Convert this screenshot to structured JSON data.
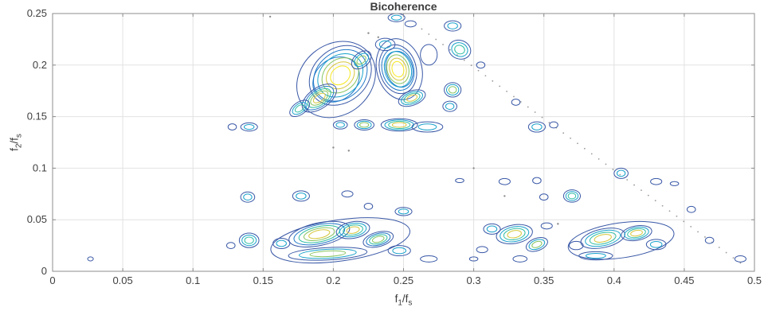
{
  "chart_data": {
    "type": "contour",
    "title": "Bicoherence",
    "xlabel_parts": [
      "f",
      "1",
      "/f",
      "s"
    ],
    "ylabel_parts": [
      "f",
      "2",
      "/f",
      "s"
    ],
    "xlim": [
      0,
      0.5
    ],
    "ylim": [
      0,
      0.25
    ],
    "xticks": [
      0,
      0.05,
      0.1,
      0.15,
      0.2,
      0.25,
      0.3,
      0.35,
      0.4,
      0.45,
      0.5
    ],
    "xtick_labels": [
      "0",
      "0.05",
      "0.1",
      "0.15",
      "0.2",
      "0.25",
      "0.3",
      "0.35",
      "0.4",
      "0.45",
      "0.5"
    ],
    "yticks": [
      0,
      0.05,
      0.1,
      0.15,
      0.2,
      0.25
    ],
    "ytick_labels": [
      "0",
      "0.05",
      "0.1",
      "0.15",
      "0.2",
      "0.25"
    ],
    "grid": true,
    "legend": "none",
    "grid_color": "#e2e2e2",
    "axis_color": "#8c8c8c",
    "text_color": "#404040",
    "dot_color": "#8c8c8c",
    "palette": [
      "#3857a6",
      "#1f77c8",
      "#18a2cc",
      "#2fbda2",
      "#86c45f",
      "#d6c63b",
      "#f6e821"
    ],
    "blob_format": "x, y, rx, ry, rotation_deg, rings, peak_level_0to1",
    "blobs": [
      [
        0.202,
        0.186,
        0.03,
        0.034,
        -40,
        2,
        0.15
      ],
      [
        0.205,
        0.19,
        0.024,
        0.026,
        -40,
        6,
        1.0
      ],
      [
        0.19,
        0.168,
        0.014,
        0.01,
        -35,
        5,
        0.85
      ],
      [
        0.176,
        0.158,
        0.008,
        0.006,
        -35,
        3,
        0.5
      ],
      [
        0.22,
        0.205,
        0.008,
        0.007,
        -40,
        3,
        0.6
      ],
      [
        0.247,
        0.196,
        0.016,
        0.03,
        -15,
        2,
        0.15
      ],
      [
        0.246,
        0.196,
        0.013,
        0.024,
        -15,
        6,
        1.0
      ],
      [
        0.256,
        0.168,
        0.01,
        0.007,
        -20,
        4,
        0.8
      ],
      [
        0.237,
        0.22,
        0.007,
        0.006,
        0,
        2,
        0.3
      ],
      [
        0.268,
        0.21,
        0.006,
        0.01,
        0,
        1,
        0
      ],
      [
        0.205,
        0.142,
        0.005,
        0.004,
        0,
        2,
        0.4
      ],
      [
        0.222,
        0.142,
        0.007,
        0.005,
        0,
        3,
        0.6
      ],
      [
        0.247,
        0.142,
        0.013,
        0.006,
        0,
        4,
        0.75
      ],
      [
        0.267,
        0.14,
        0.011,
        0.005,
        0,
        2,
        0.3
      ],
      [
        0.283,
        0.16,
        0.005,
        0.005,
        0,
        2,
        0.4
      ],
      [
        0.285,
        0.176,
        0.006,
        0.007,
        0,
        3,
        0.6
      ],
      [
        0.29,
        0.215,
        0.008,
        0.009,
        20,
        3,
        0.55
      ],
      [
        0.285,
        0.238,
        0.006,
        0.005,
        0,
        2,
        0.3
      ],
      [
        0.245,
        0.246,
        0.006,
        0.004,
        0,
        2,
        0.4
      ],
      [
        0.255,
        0.24,
        0.004,
        0.003,
        0,
        1,
        0
      ],
      [
        0.14,
        0.14,
        0.006,
        0.004,
        0,
        2,
        0.35
      ],
      [
        0.128,
        0.14,
        0.003,
        0.003,
        0,
        1,
        0
      ],
      [
        0.139,
        0.072,
        0.005,
        0.005,
        0,
        2,
        0.35
      ],
      [
        0.14,
        0.03,
        0.007,
        0.007,
        0,
        3,
        0.55
      ],
      [
        0.127,
        0.025,
        0.003,
        0.003,
        0,
        1,
        0
      ],
      [
        0.177,
        0.073,
        0.006,
        0.005,
        0,
        2,
        0.4
      ],
      [
        0.21,
        0.075,
        0.004,
        0.003,
        0,
        1,
        0
      ],
      [
        0.25,
        0.058,
        0.006,
        0.004,
        0,
        2,
        0.3
      ],
      [
        0.225,
        0.063,
        0.003,
        0.003,
        0,
        1,
        0
      ],
      [
        0.205,
        0.03,
        0.05,
        0.02,
        -8,
        1,
        0
      ],
      [
        0.19,
        0.036,
        0.022,
        0.011,
        -12,
        5,
        0.9
      ],
      [
        0.214,
        0.04,
        0.012,
        0.008,
        -10,
        4,
        0.8
      ],
      [
        0.232,
        0.031,
        0.011,
        0.007,
        -15,
        4,
        0.7
      ],
      [
        0.196,
        0.017,
        0.028,
        0.006,
        -3,
        3,
        0.6
      ],
      [
        0.247,
        0.02,
        0.008,
        0.005,
        0,
        2,
        0.3
      ],
      [
        0.163,
        0.027,
        0.006,
        0.005,
        0,
        2,
        0.3
      ],
      [
        0.268,
        0.012,
        0.006,
        0.003,
        0,
        1,
        0
      ],
      [
        0.329,
        0.036,
        0.013,
        0.009,
        -10,
        4,
        0.75
      ],
      [
        0.313,
        0.041,
        0.006,
        0.005,
        0,
        2,
        0.4
      ],
      [
        0.345,
        0.026,
        0.008,
        0.006,
        -20,
        3,
        0.6
      ],
      [
        0.306,
        0.021,
        0.004,
        0.003,
        0,
        1,
        0
      ],
      [
        0.352,
        0.044,
        0.004,
        0.003,
        0,
        1,
        0
      ],
      [
        0.333,
        0.012,
        0.005,
        0.003,
        0,
        1,
        0
      ],
      [
        0.405,
        0.03,
        0.038,
        0.017,
        -8,
        1,
        0
      ],
      [
        0.392,
        0.032,
        0.016,
        0.009,
        -12,
        4,
        0.8
      ],
      [
        0.416,
        0.037,
        0.011,
        0.007,
        -10,
        4,
        0.75
      ],
      [
        0.43,
        0.026,
        0.007,
        0.005,
        0,
        2,
        0.4
      ],
      [
        0.387,
        0.015,
        0.012,
        0.004,
        0,
        2,
        0.4
      ],
      [
        0.373,
        0.025,
        0.005,
        0.004,
        0,
        1,
        0
      ],
      [
        0.37,
        0.073,
        0.006,
        0.006,
        0,
        3,
        0.5
      ],
      [
        0.35,
        0.072,
        0.003,
        0.003,
        0,
        1,
        0
      ],
      [
        0.322,
        0.087,
        0.004,
        0.003,
        0,
        1,
        0
      ],
      [
        0.345,
        0.088,
        0.003,
        0.003,
        0,
        1,
        0
      ],
      [
        0.29,
        0.088,
        0.003,
        0.002,
        0,
        1,
        0
      ],
      [
        0.405,
        0.095,
        0.005,
        0.005,
        0,
        2,
        0.35
      ],
      [
        0.43,
        0.087,
        0.004,
        0.003,
        0,
        1,
        0
      ],
      [
        0.443,
        0.085,
        0.003,
        0.002,
        0,
        1,
        0
      ],
      [
        0.455,
        0.06,
        0.003,
        0.003,
        0,
        1,
        0
      ],
      [
        0.345,
        0.14,
        0.006,
        0.005,
        0,
        2,
        0.35
      ],
      [
        0.357,
        0.142,
        0.003,
        0.003,
        0,
        1,
        0
      ],
      [
        0.33,
        0.164,
        0.003,
        0.003,
        0,
        1,
        0
      ],
      [
        0.305,
        0.2,
        0.003,
        0.003,
        0,
        1,
        0
      ],
      [
        0.468,
        0.03,
        0.003,
        0.003,
        0,
        1,
        0
      ],
      [
        0.49,
        0.012,
        0.004,
        0.003,
        0,
        1,
        0
      ],
      [
        0.027,
        0.012,
        0.002,
        0.002,
        0,
        1,
        0
      ],
      [
        0.3,
        0.012,
        0.003,
        0.002,
        0,
        1,
        0
      ]
    ],
    "dots": [
      [
        0.2,
        0.12
      ],
      [
        0.211,
        0.117
      ],
      [
        0.225,
        0.231
      ],
      [
        0.232,
        0.227
      ],
      [
        0.322,
        0.073
      ],
      [
        0.36,
        0.046
      ],
      [
        0.155,
        0.247
      ],
      [
        0.3,
        0.1
      ]
    ],
    "diagonal": {
      "x1": 0.263,
      "y1": 0.235,
      "x2": 0.49,
      "y2": 0.008,
      "count": 46,
      "color": "#9a9a9a"
    }
  }
}
